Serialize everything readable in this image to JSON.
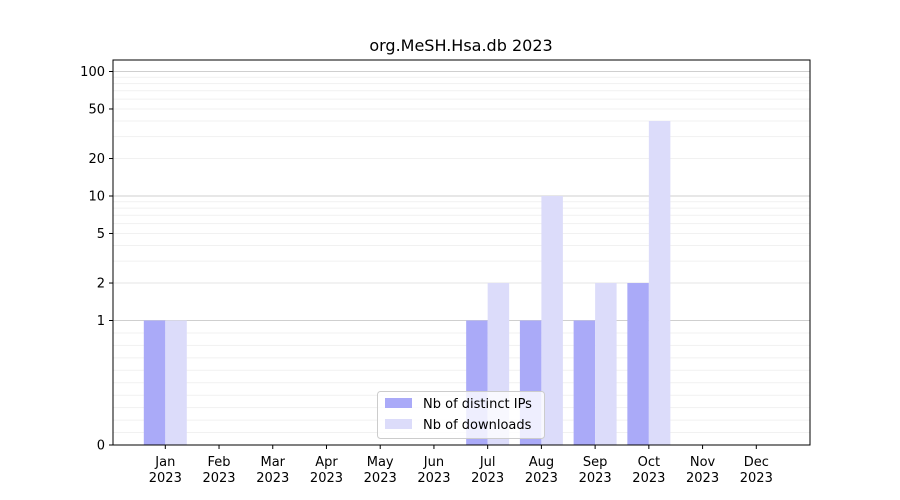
{
  "chart_data": {
    "type": "bar",
    "title": "org.MeSH.Hsa.db 2023",
    "xlabel": "",
    "ylabel": "",
    "y_scale": "symlog",
    "ylim": [
      0,
      120
    ],
    "y_ticks": [
      0,
      1,
      2,
      5,
      10,
      20,
      50,
      100
    ],
    "categories": [
      [
        "Jan",
        "2023"
      ],
      [
        "Feb",
        "2023"
      ],
      [
        "Mar",
        "2023"
      ],
      [
        "Apr",
        "2023"
      ],
      [
        "May",
        "2023"
      ],
      [
        "Jun",
        "2023"
      ],
      [
        "Jul",
        "2023"
      ],
      [
        "Aug",
        "2023"
      ],
      [
        "Sep",
        "2023"
      ],
      [
        "Oct",
        "2023"
      ],
      [
        "Nov",
        "2023"
      ],
      [
        "Dec",
        "2023"
      ]
    ],
    "series": [
      {
        "name": "Nb of distinct IPs",
        "color": "#aaaaf8",
        "values": [
          1,
          0,
          0,
          0,
          0,
          0,
          1,
          1,
          1,
          2,
          0,
          0
        ]
      },
      {
        "name": "Nb of downloads",
        "color": "#dcdcfa",
        "values": [
          1,
          0,
          0,
          0,
          0,
          0,
          2,
          10,
          2,
          40,
          0,
          0
        ]
      }
    ],
    "grid": "horizontal",
    "legend_position": "bottom-center"
  }
}
